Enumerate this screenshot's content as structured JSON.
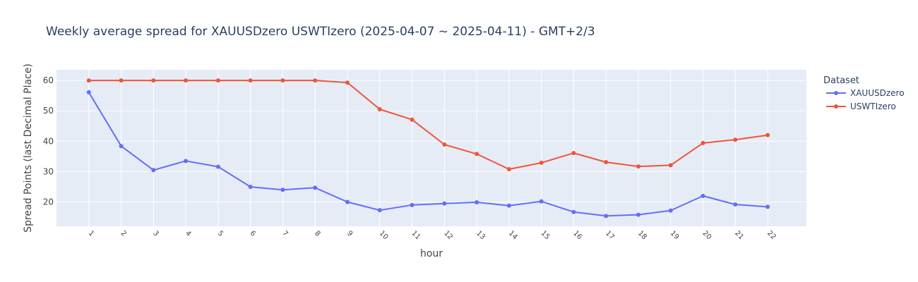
{
  "chart_data": {
    "type": "line",
    "title": "Weekly average spread for  XAUUSDzero USWTIzero (2025-04-07 ~ 2025-04-11) - GMT+2/3",
    "xlabel": "hour",
    "ylabel": "Spread Points (last Decimal Place)",
    "x": [
      1,
      2,
      3,
      4,
      5,
      6,
      7,
      8,
      9,
      10,
      11,
      12,
      13,
      14,
      15,
      16,
      17,
      18,
      19,
      20,
      21,
      22
    ],
    "x_tick_labels": [
      "1",
      "2",
      "3",
      "4",
      "5",
      "6",
      "7",
      "8",
      "9",
      "10",
      "11",
      "12",
      "13",
      "14",
      "15",
      "16",
      "17",
      "18",
      "19",
      "20",
      "21",
      "22"
    ],
    "y_ticks": [
      20,
      30,
      40,
      50,
      60
    ],
    "y_tick_labels": [
      "20",
      "30",
      "40",
      "50",
      "60"
    ],
    "ylim": [
      12,
      63.5
    ],
    "xlim": [
      0,
      23.2
    ],
    "grid": true,
    "legend_title": "Dataset",
    "legend_position": "right",
    "series": [
      {
        "name": "XAUUSDzero",
        "color": "#636efa",
        "values": [
          56.1,
          38.4,
          30.5,
          33.5,
          31.6,
          25.0,
          24.0,
          24.7,
          20.0,
          17.3,
          19.0,
          19.5,
          19.9,
          18.8,
          20.2,
          16.7,
          15.4,
          15.8,
          17.2,
          22.0,
          19.2,
          18.4
        ]
      },
      {
        "name": "USWTIzero",
        "color": "#ef553b",
        "values": [
          60.0,
          60.0,
          60.0,
          60.0,
          60.0,
          60.0,
          60.0,
          60.0,
          59.3,
          50.5,
          47.1,
          38.9,
          35.8,
          30.8,
          32.9,
          36.1,
          33.1,
          31.7,
          32.1,
          39.4,
          40.5,
          42.0
        ]
      }
    ],
    "colors": {
      "plot_bg": "#e5ecf6",
      "grid": "#ffffff"
    }
  }
}
